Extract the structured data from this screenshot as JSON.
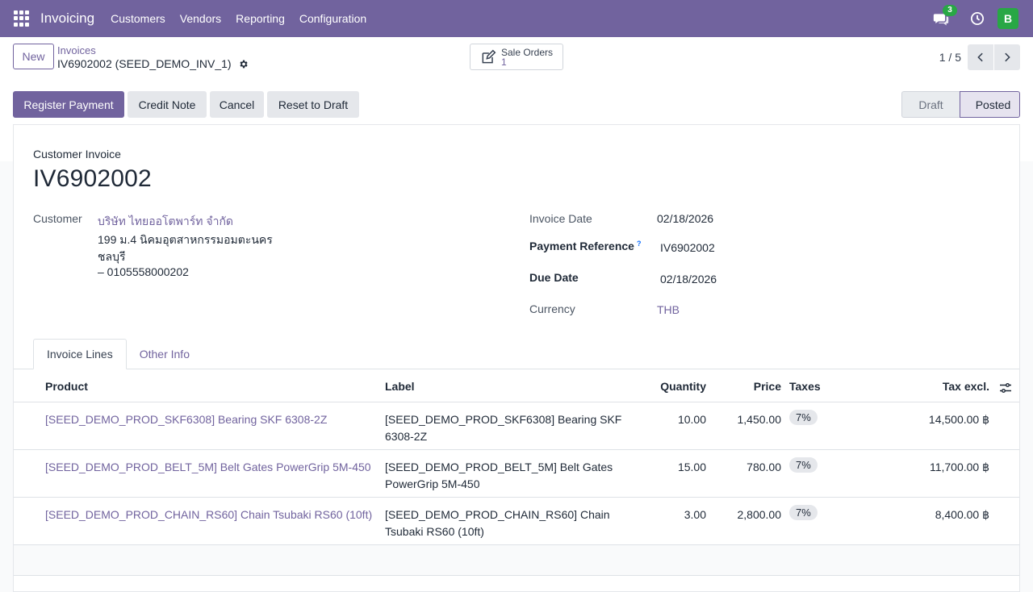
{
  "navbar": {
    "app_name": "Invoicing",
    "menu": [
      "Customers",
      "Vendors",
      "Reporting",
      "Configuration"
    ],
    "chat_count": "3",
    "avatar_letter": "B"
  },
  "control": {
    "new_label": "New",
    "breadcrumb_parent": "Invoices",
    "breadcrumb_current": "IV6902002 (SEED_DEMO_INV_1)",
    "smart_button": {
      "label": "Sale Orders",
      "count": "1"
    },
    "pager": "1 / 5"
  },
  "actions": {
    "register_payment": "Register Payment",
    "credit_note": "Credit Note",
    "cancel": "Cancel",
    "reset_to_draft": "Reset to Draft"
  },
  "status": {
    "draft": "Draft",
    "posted": "Posted"
  },
  "invoice": {
    "doc_type": "Customer Invoice",
    "number": "IV6902002",
    "customer_label": "Customer",
    "customer_name": "บริษัท ไทยออโตพาร์ท จำกัด",
    "customer_address_1": "199 ม.4 นิคมอุตสาหกรรมอมตะนคร",
    "customer_address_2": "ชลบุรี",
    "customer_tax": "– 0105558000202",
    "invoice_date_label": "Invoice Date",
    "invoice_date": "02/18/2026",
    "payment_ref_label": "Payment Reference",
    "payment_ref_help": "?",
    "payment_ref": "IV6902002",
    "due_date_label": "Due Date",
    "due_date": "02/18/2026",
    "currency_label": "Currency",
    "currency": "THB"
  },
  "tabs": [
    "Invoice Lines",
    "Other Info"
  ],
  "table": {
    "headers": {
      "product": "Product",
      "label": "Label",
      "quantity": "Quantity",
      "price": "Price",
      "taxes": "Taxes",
      "tax_excl": "Tax excl."
    },
    "rows": [
      {
        "product": "[SEED_DEMO_PROD_SKF6308] Bearing SKF 6308-2Z",
        "label_1": "[SEED_DEMO_PROD_SKF6308] Bearing SKF",
        "label_2": "6308-2Z",
        "quantity": "10.00",
        "price": "1,450.00",
        "tax": "7%",
        "subtotal": "14,500.00 ฿"
      },
      {
        "product": "[SEED_DEMO_PROD_BELT_5M] Belt Gates PowerGrip 5M-450",
        "label_1": "[SEED_DEMO_PROD_BELT_5M] Belt Gates",
        "label_2": "PowerGrip 5M-450",
        "quantity": "15.00",
        "price": "780.00",
        "tax": "7%",
        "subtotal": "11,700.00 ฿"
      },
      {
        "product": "[SEED_DEMO_PROD_CHAIN_RS60] Chain Tsubaki RS60 (10ft)",
        "label_1": "[SEED_DEMO_PROD_CHAIN_RS60] Chain",
        "label_2": "Tsubaki RS60 (10ft)",
        "quantity": "3.00",
        "price": "2,800.00",
        "tax": "7%",
        "subtotal": "8,400.00 ฿"
      }
    ]
  },
  "colors": {
    "brand": "#71639e",
    "success": "#28a745"
  }
}
